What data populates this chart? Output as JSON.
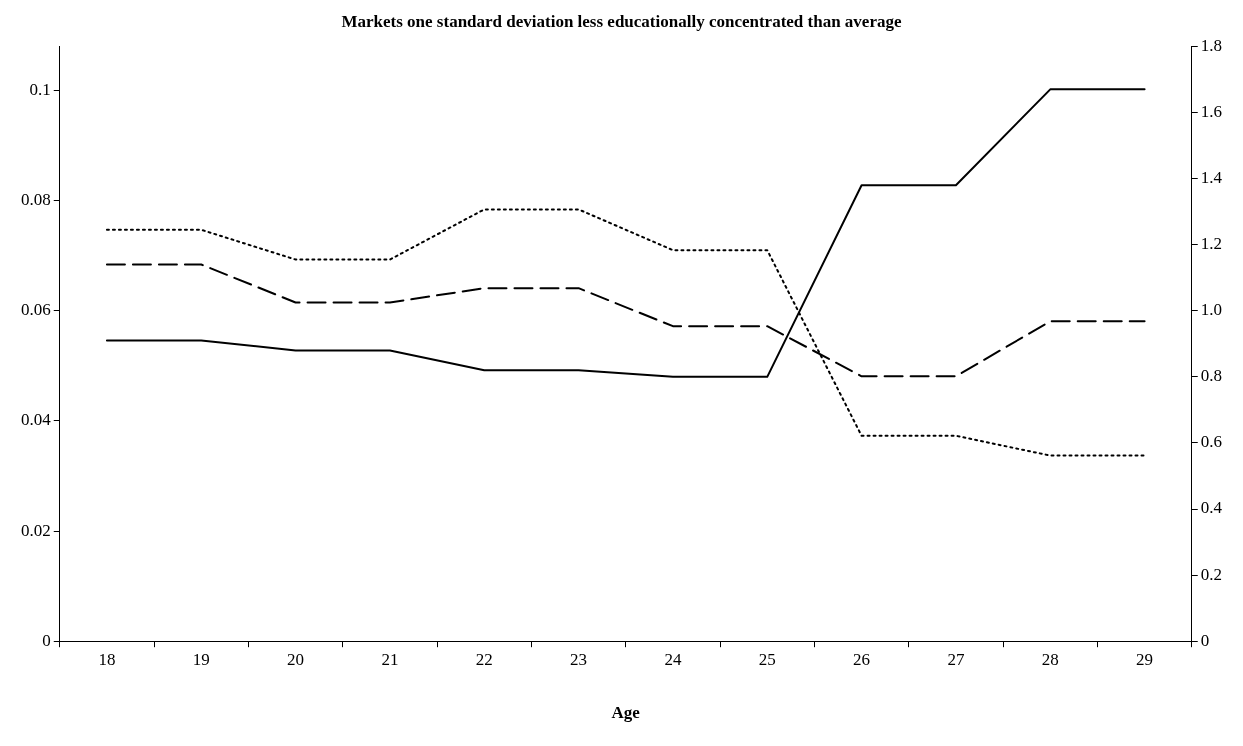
{
  "chart_data": {
    "type": "line",
    "title": "Markets one standard deviation less educationally concentrated than average",
    "xlabel": "Age",
    "categories": [
      "18",
      "19",
      "20",
      "21",
      "22",
      "23",
      "24",
      "25",
      "26",
      "27",
      "28",
      "29"
    ],
    "series": [
      {
        "color": "#000000",
        "line_style": "solid",
        "axis": "y2",
        "values": [
          0.91,
          0.91,
          0.88,
          0.88,
          0.82,
          0.82,
          0.8,
          0.8,
          1.38,
          1.38,
          1.67,
          1.67
        ]
      },
      {
        "color": "#000000",
        "line_style": "dashed",
        "values": [
          0.0684,
          0.0684,
          0.0615,
          0.0615,
          0.0641,
          0.0641,
          0.0572,
          0.0572,
          0.0481,
          0.0481,
          0.0581,
          0.0581
        ]
      },
      {
        "color": "#000000",
        "line_style": "dotted",
        "values": [
          0.0747,
          0.0747,
          0.0693,
          0.0693,
          0.0784,
          0.0784,
          0.071,
          0.071,
          0.0373,
          0.0373,
          0.0337,
          0.0337
        ]
      }
    ],
    "ylim": [
      0,
      0.108
    ],
    "yticks": [
      0,
      0.02,
      0.04,
      0.06,
      0.08,
      0.1
    ],
    "y2lim": [
      0,
      1.8
    ],
    "y2ticks": [
      0,
      {
        "value": 0.2,
        "label": "0.2"
      },
      {
        "value": 0.4,
        "label": "0.4"
      },
      {
        "value": 0.6,
        "label": "0.6"
      },
      {
        "value": 0.8,
        "label": "0.8"
      },
      {
        "value": 1,
        "label": "1.0"
      },
      {
        "value": 1.2,
        "label": "1.2"
      },
      {
        "value": 1.4,
        "label": "1.4"
      },
      {
        "value": 1.6,
        "label": "1.6"
      },
      {
        "value": 1.8,
        "label": "1.8"
      }
    ],
    "grid": false,
    "legend": false,
    "marker": "none"
  }
}
